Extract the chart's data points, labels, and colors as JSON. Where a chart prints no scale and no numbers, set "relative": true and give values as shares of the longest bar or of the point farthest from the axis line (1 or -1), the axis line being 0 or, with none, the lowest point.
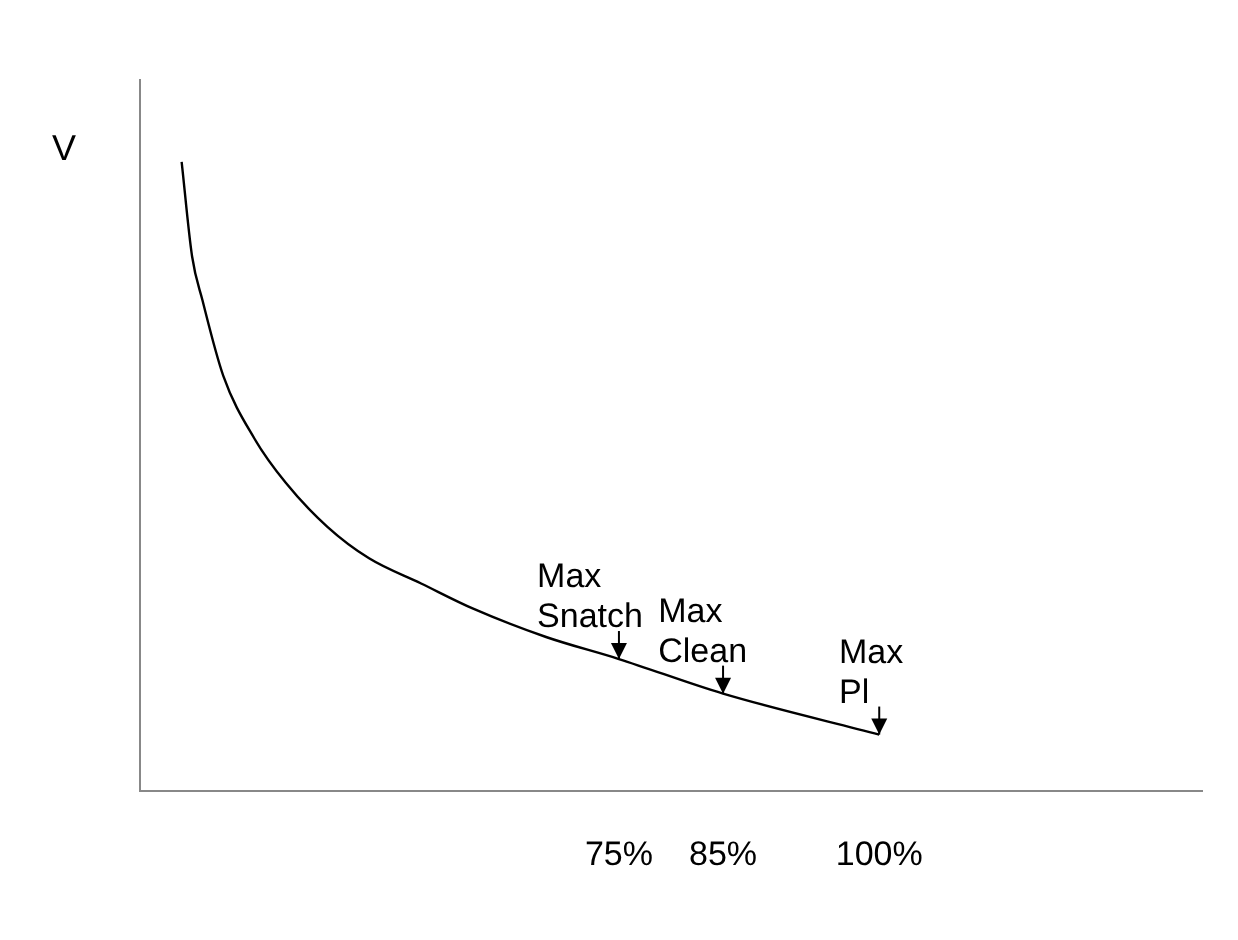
{
  "chart_data": {
    "type": "line",
    "ylabel": "V",
    "relative": true,
    "x": [
      33,
      34,
      35,
      37,
      40,
      43,
      47,
      51,
      56,
      61,
      68,
      75,
      85,
      100
    ],
    "series": [
      {
        "color": "#000000",
        "values": [
          1.0,
          0.85,
          0.78,
          0.66,
          0.56,
          0.49,
          0.42,
          0.37,
          0.33,
          0.29,
          0.245,
          0.21,
          0.155,
          0.09
        ]
      }
    ],
    "xlim": [
      29,
      131
    ],
    "xticks": [
      {
        "value": 75,
        "label": "75%"
      },
      {
        "value": 85,
        "label": "85%"
      },
      {
        "value": 100,
        "label": "100%"
      }
    ],
    "annotations": [
      {
        "text": "Max Snatch",
        "x": 75,
        "y": 0.21
      },
      {
        "text": "Max Clean",
        "x": 85,
        "y": 0.155
      },
      {
        "text": "Max Pl",
        "x": 100,
        "y": 0.09
      }
    ],
    "grid": false,
    "legend": false,
    "marker": "none",
    "line_style": "solid"
  }
}
